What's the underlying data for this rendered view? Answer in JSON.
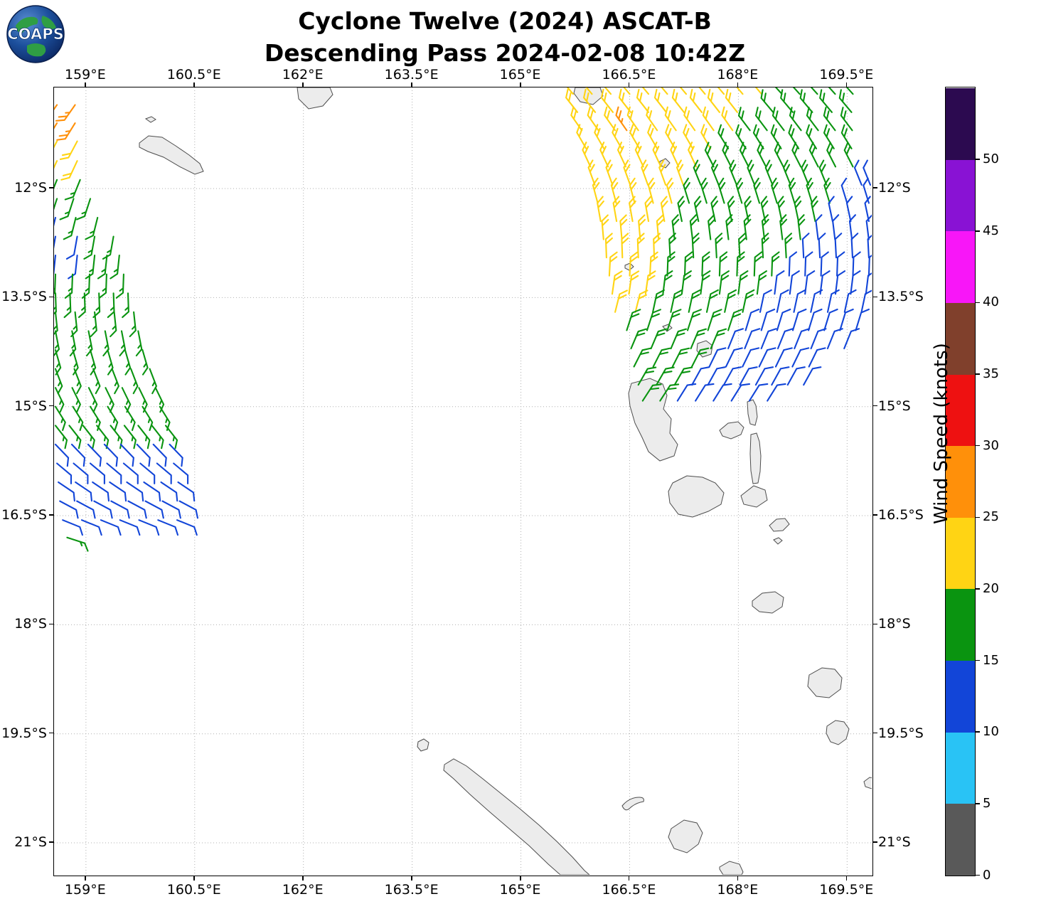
{
  "header": {
    "title_line1": "Cyclone Twelve (2024) ASCAT-B",
    "title_line2": "Descending Pass 2024-02-08 10:42Z",
    "logo_text": "COAPS"
  },
  "axes": {
    "lon_range": [
      158.56,
      169.84
    ],
    "lat_range_s": [
      10.61,
      21.44
    ],
    "lon_ticks": [
      {
        "value": 159.0,
        "label": "159°E"
      },
      {
        "value": 160.5,
        "label": "160.5°E"
      },
      {
        "value": 162.0,
        "label": "162°E"
      },
      {
        "value": 163.5,
        "label": "163.5°E"
      },
      {
        "value": 165.0,
        "label": "165°E"
      },
      {
        "value": 166.5,
        "label": "166.5°E"
      },
      {
        "value": 168.0,
        "label": "168°E"
      },
      {
        "value": 169.5,
        "label": "169.5°E"
      }
    ],
    "lat_ticks": [
      {
        "value": 12.0,
        "label": "12°S"
      },
      {
        "value": 13.5,
        "label": "13.5°S"
      },
      {
        "value": 15.0,
        "label": "15°S"
      },
      {
        "value": 16.5,
        "label": "16.5°S"
      },
      {
        "value": 18.0,
        "label": "18°S"
      },
      {
        "value": 19.5,
        "label": "19.5°S"
      },
      {
        "value": 21.0,
        "label": "21°S"
      }
    ]
  },
  "colorbar": {
    "label": "Wind Speed (knots)",
    "vmin": 0,
    "vmax": 55,
    "ticks": [
      0,
      5,
      10,
      15,
      20,
      25,
      30,
      35,
      40,
      45,
      50
    ],
    "segments": [
      {
        "range": [
          0,
          5
        ],
        "color": "#595959"
      },
      {
        "range": [
          5,
          10
        ],
        "color": "#29c3f5"
      },
      {
        "range": [
          10,
          15
        ],
        "color": "#1245d8"
      },
      {
        "range": [
          15,
          20
        ],
        "color": "#0a9410"
      },
      {
        "range": [
          20,
          25
        ],
        "color": "#ffd414"
      },
      {
        "range": [
          25,
          30
        ],
        "color": "#ff900a"
      },
      {
        "range": [
          30,
          35
        ],
        "color": "#ee1111"
      },
      {
        "range": [
          35,
          40
        ],
        "color": "#80402c"
      },
      {
        "range": [
          40,
          45
        ],
        "color": "#f816f8"
      },
      {
        "range": [
          45,
          50
        ],
        "color": "#8912d4"
      },
      {
        "range": [
          50,
          55
        ],
        "color": "#2c0a50"
      }
    ]
  },
  "chart_data": {
    "type": "wind_barbs_map",
    "title": "Cyclone Twelve (2024) ASCAT-B — Descending Pass 2024-02-08 10:42Z",
    "satellite": "ASCAT-B",
    "pass_type": "Descending",
    "datetime_utc": "2024-02-08 10:42Z",
    "units": "knots",
    "seg_format": [
      "lon_start_deg_e",
      "lon_end_deg_e",
      "lon_step_deg",
      "speed_kt",
      "wind_from_dir_deg"
    ],
    "swaths": [
      {
        "name": "west-swath",
        "rows": [
          {
            "lat": -10.85,
            "segs": [
              [
                158.6,
                158.85,
                0.25,
                26,
                215
              ]
            ]
          },
          {
            "lat": -11.1,
            "segs": [
              [
                158.6,
                158.85,
                0.25,
                26,
                212
              ]
            ]
          },
          {
            "lat": -11.35,
            "segs": [
              [
                158.6,
                158.88,
                0.28,
                22,
                208
              ]
            ]
          },
          {
            "lat": -11.62,
            "segs": [
              [
                158.6,
                158.88,
                0.28,
                22,
                205
              ]
            ]
          },
          {
            "lat": -11.88,
            "segs": [
              [
                158.6,
                158.92,
                0.32,
                17,
                202
              ]
            ]
          },
          {
            "lat": -12.14,
            "segs": [
              [
                158.6,
                159.06,
                0.23,
                17,
                198
              ]
            ]
          },
          {
            "lat": -12.4,
            "segs": [
              [
                158.58,
                158.58,
                1,
                12,
                194
              ],
              [
                158.86,
                159.16,
                0.3,
                17,
                194
              ]
            ]
          },
          {
            "lat": -12.66,
            "segs": [
              [
                158.58,
                158.88,
                0.3,
                12,
                190
              ],
              [
                159.12,
                159.38,
                0.26,
                17,
                190
              ]
            ]
          },
          {
            "lat": -12.92,
            "segs": [
              [
                158.58,
                158.88,
                0.3,
                12,
                186
              ],
              [
                159.12,
                159.46,
                0.17,
                17,
                186
              ]
            ]
          },
          {
            "lat": -13.18,
            "segs": [
              [
                158.58,
                159.52,
                0.235,
                17,
                182
              ]
            ]
          },
          {
            "lat": -13.44,
            "segs": [
              [
                158.58,
                159.6,
                0.2,
                17,
                178
              ]
            ]
          },
          {
            "lat": -13.7,
            "segs": [
              [
                158.58,
                159.66,
                0.27,
                17,
                174
              ]
            ]
          },
          {
            "lat": -13.96,
            "segs": [
              [
                158.58,
                159.72,
                0.228,
                17,
                169
              ]
            ]
          },
          {
            "lat": -14.22,
            "segs": [
              [
                158.58,
                159.8,
                0.24,
                17,
                164
              ]
            ]
          },
          {
            "lat": -14.48,
            "segs": [
              [
                158.58,
                159.88,
                0.26,
                17,
                159
              ]
            ]
          },
          {
            "lat": -14.74,
            "segs": [
              [
                158.58,
                159.96,
                0.23,
                17,
                154
              ]
            ]
          },
          {
            "lat": -15.0,
            "segs": [
              [
                158.58,
                160.04,
                0.24,
                17,
                148
              ]
            ]
          },
          {
            "lat": -15.26,
            "segs": [
              [
                158.58,
                160.1,
                0.19,
                16,
                142
              ]
            ]
          },
          {
            "lat": -15.52,
            "segs": [
              [
                158.58,
                160.16,
                0.225,
                12,
                136
              ]
            ]
          },
          {
            "lat": -15.78,
            "segs": [
              [
                158.6,
                160.22,
                0.23,
                12,
                130
              ]
            ]
          },
          {
            "lat": -16.04,
            "segs": [
              [
                158.62,
                160.28,
                0.236,
                12,
                124
              ]
            ]
          },
          {
            "lat": -16.3,
            "segs": [
              [
                158.64,
                160.3,
                0.236,
                12,
                118
              ]
            ]
          },
          {
            "lat": -16.56,
            "segs": [
              [
                158.68,
                160.26,
                0.263,
                12,
                112
              ]
            ]
          },
          {
            "lat": -16.8,
            "segs": [
              [
                158.74,
                158.74,
                1,
                16,
                108
              ]
            ]
          }
        ]
      },
      {
        "name": "east-swath",
        "rows": [
          {
            "lat": -10.7,
            "segs": [
              [
                165.72,
                168.32,
                0.26,
                22,
                320
              ],
              [
                168.6,
                169.82,
                0.245,
                18,
                318
              ]
            ]
          },
          {
            "lat": -10.95,
            "segs": [
              [
                165.78,
                168.22,
                0.245,
                22,
                322
              ],
              [
                168.48,
                169.82,
                0.27,
                18,
                320
              ]
            ]
          },
          {
            "lat": -11.2,
            "segs": [
              [
                165.84,
                166.3,
                0.23,
                22,
                325
              ],
              [
                166.46,
                166.46,
                1,
                26,
                325
              ],
              [
                166.62,
                167.92,
                0.26,
                22,
                325
              ],
              [
                168.16,
                169.8,
                0.235,
                18,
                323
              ]
            ]
          },
          {
            "lat": -11.45,
            "segs": [
              [
                165.9,
                167.62,
                0.245,
                22,
                330
              ],
              [
                167.86,
                169.8,
                0.243,
                18,
                328
              ]
            ]
          },
          {
            "lat": -11.7,
            "segs": [
              [
                165.96,
                167.42,
                0.243,
                22,
                335
              ],
              [
                167.66,
                169.58,
                0.24,
                18,
                333
              ]
            ]
          },
          {
            "lat": -11.95,
            "segs": [
              [
                166.02,
                167.24,
                0.244,
                22,
                340
              ],
              [
                167.48,
                169.46,
                0.248,
                18,
                338
              ],
              [
                169.7,
                169.82,
                0.12,
                12,
                338
              ]
            ]
          },
          {
            "lat": -12.2,
            "segs": [
              [
                166.06,
                167.08,
                0.255,
                22,
                345
              ],
              [
                167.32,
                169.26,
                0.2425,
                18,
                343
              ],
              [
                169.5,
                169.8,
                0.3,
                12,
                343
              ]
            ]
          },
          {
            "lat": -12.45,
            "segs": [
              [
                166.1,
                166.98,
                0.22,
                22,
                350
              ],
              [
                167.22,
                169.06,
                0.23,
                18,
                348
              ],
              [
                169.3,
                169.8,
                0.25,
                12,
                348
              ]
            ]
          },
          {
            "lat": -12.7,
            "segs": [
              [
                166.14,
                166.9,
                0.253,
                22,
                355
              ],
              [
                167.12,
                168.86,
                0.248,
                18,
                353
              ],
              [
                169.1,
                169.8,
                0.233,
                12,
                353
              ]
            ]
          },
          {
            "lat": -12.95,
            "segs": [
              [
                166.18,
                166.84,
                0.22,
                22,
                358
              ],
              [
                167.06,
                168.66,
                0.32,
                18,
                357
              ],
              [
                168.9,
                169.8,
                0.225,
                12,
                357
              ]
            ]
          },
          {
            "lat": -13.2,
            "segs": [
              [
                166.22,
                166.78,
                0.28,
                22,
                3
              ],
              [
                167.02,
                168.46,
                0.24,
                18,
                2
              ],
              [
                168.7,
                169.8,
                0.22,
                12,
                2
              ]
            ]
          },
          {
            "lat": -13.45,
            "segs": [
              [
                166.26,
                166.72,
                0.23,
                22,
                8
              ],
              [
                166.96,
                168.26,
                0.26,
                18,
                7
              ],
              [
                168.5,
                169.76,
                0.21,
                12,
                7
              ]
            ]
          },
          {
            "lat": -13.7,
            "segs": [
              [
                166.3,
                166.58,
                0.28,
                22,
                14
              ],
              [
                166.82,
                168.06,
                0.248,
                18,
                12
              ],
              [
                168.3,
                169.7,
                0.233,
                12,
                12
              ]
            ]
          },
          {
            "lat": -13.95,
            "segs": [
              [
                166.46,
                167.86,
                0.28,
                18,
                18
              ],
              [
                168.1,
                169.62,
                0.217,
                12,
                17
              ]
            ]
          },
          {
            "lat": -14.2,
            "segs": [
              [
                166.52,
                167.62,
                0.275,
                18,
                23
              ],
              [
                167.86,
                169.46,
                0.2285,
                12,
                22
              ]
            ]
          },
          {
            "lat": -14.45,
            "segs": [
              [
                166.56,
                167.36,
                0.266,
                18,
                27
              ],
              [
                167.6,
                169.2,
                0.229,
                12,
                26
              ]
            ]
          },
          {
            "lat": -14.7,
            "segs": [
              [
                166.62,
                167.12,
                0.25,
                18,
                30
              ],
              [
                167.36,
                168.9,
                0.22,
                12,
                29
              ]
            ]
          },
          {
            "lat": -14.92,
            "segs": [
              [
                166.68,
                166.92,
                0.24,
                18,
                33
              ],
              [
                167.16,
                168.4,
                0.248,
                12,
                32
              ]
            ]
          }
        ]
      }
    ]
  },
  "map": {
    "land_fill": "#ececec",
    "land_stroke": "#4d4d4d",
    "grid_color": "#b0b0b0",
    "coastlines": [
      "M120,78 L133,68 L152,70 L171,82 L190,95 L205,107 L210,118 L198,122 L178,112 L154,98 L132,90 L120,84 Z",
      "M129,44 l8,-3 l6,4 l-7,4 Z",
      "M342,0 L388,0 L392,10 L378,26 L358,30 L344,16 Z",
      "M733,0 L768,0 L772,12 L758,24 L740,20 L731,8 Z",
      "M852,104 l8,-4 l6,6 l-6,7 l-8,-4 Z",
      "M803,250 l7,-3 l5,5 l-6,5 l-6,-3 Z",
      "M856,336 l8,-3 l5,5 l-7,5 Z",
      "M905,360 l12,-4 l9,7 l-2,12 l-12,4 l-8,-9 Z",
      "M812,416 L838,409 L856,417 L862,433 L857,452 L868,466 L866,486 L877,502 L872,518 L852,525 L836,512 L827,492 L817,472 L810,448 L808,430 Z",
      "M975,442 l8,-3 l4,8 l2,16 l-3,12 l-7,-2 l-3,-14 Z",
      "M980,488 l8,-2 l4,12 l2,20 l-1,22 l-3,16 l-7,1 l-3,-18 l-1,-24 Z",
      "M936,482 l12,-10 l14,-2 l8,8 l-4,10 l-14,6 l-12,-4 Z",
      "M870,556 L890,546 L912,548 L930,556 L942,570 L938,586 L920,596 L898,604 L878,600 L866,584 L864,568 Z",
      "M966,574 L984,560 L1000,566 L1003,580 L988,590 L970,586 Z",
      "M1006,616 l10,-9 l12,-1 l6,8 l-9,9 l-13,1 Z",
      "M1012,636 l7,-3 l5,4 l-6,5 Z",
      "M982,722 l14,-11 l18,-2 l12,8 l-2,13 l-14,9 l-18,-2 l-10,-8 Z",
      "M1062,826 l18,-10 l18,2 l10,12 l-2,16 l-16,12 l-18,-2 l-12,-14 Z",
      "M1087,898 l12,-8 l12,2 l7,10 l-4,14 l-11,8 l-11,-4 l-6,-12 Z",
      "M1139,976 l8,-6 l9,2 l2,8 l-8,6 l-9,-3 Z",
      "M512,920 l8,-4 l7,5 l-2,9 l-9,3 l-5,-6 Z",
      "M549,952 L562,944 L580,954 L603,972 L629,993 L655,1014 L682,1037 L707,1060 L729,1082 L746,1101 L753,1107 L712,1107 L695,1092 L668,1066 L640,1042 L612,1018 L585,994 L562,972 L548,960 Z",
      "M799,1010 q10,-12 24,-12 q8,0 6,6 q-12,2 -20,10 q-6,5 -10,-4 Z",
      "M868,1042 L886,1030 L904,1034 L912,1048 L906,1064 L890,1076 L872,1070 L864,1054 Z",
      "M936,1096 l14,-8 l14,4 l5,11 l-2,4 l-26,0 l-5,-8 Z"
    ]
  }
}
